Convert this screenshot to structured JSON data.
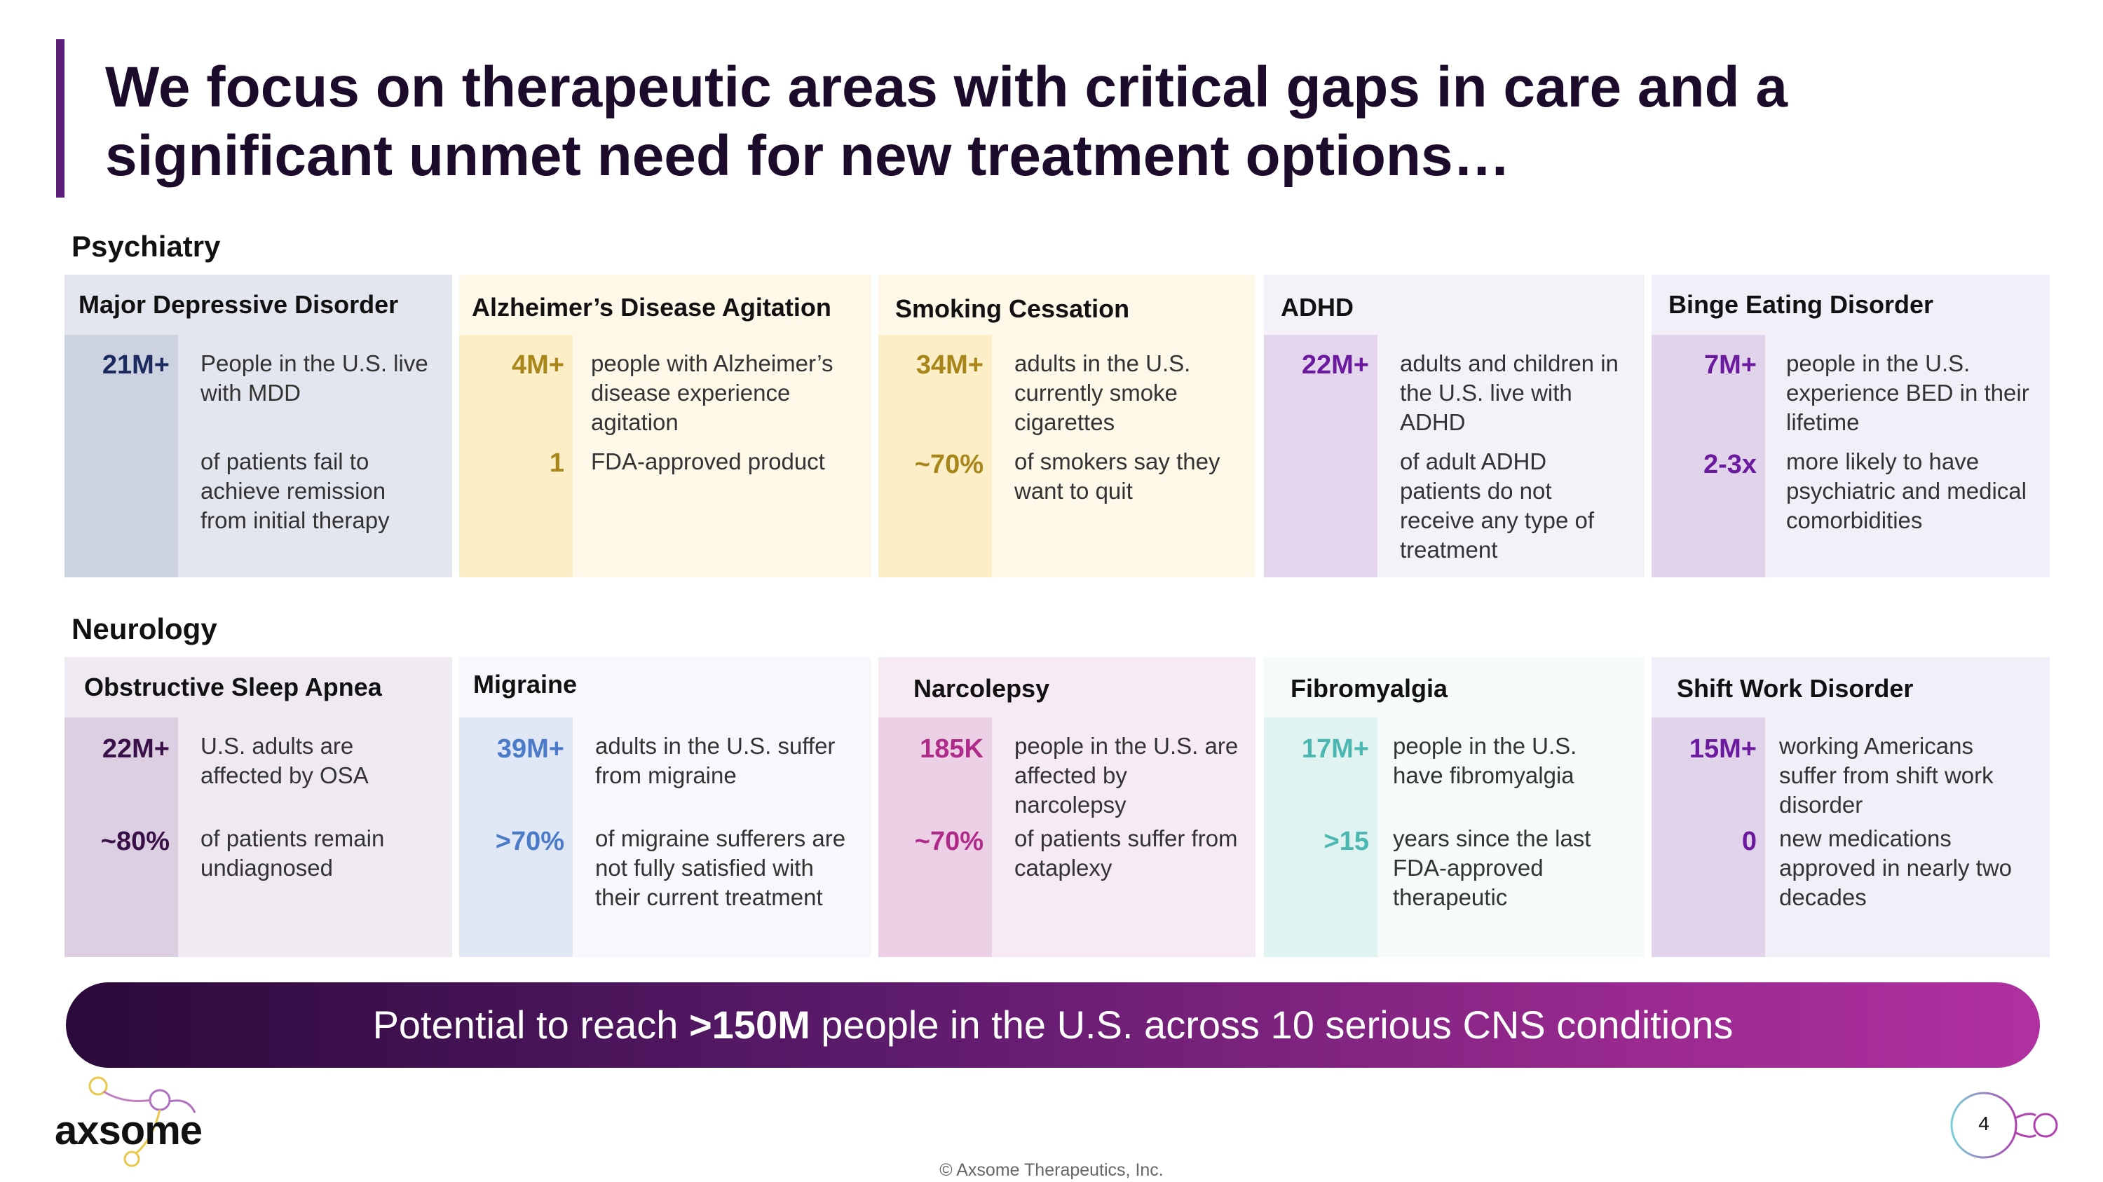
{
  "title": {
    "line1": "We focus on therapeutic areas with critical gaps in care and a",
    "line2": "significant unmet need for new treatment options…"
  },
  "sections": {
    "psychiatry": "Psychiatry",
    "neurology": "Neurology"
  },
  "cards": {
    "mdd": {
      "title": "Major Depressive Disorder",
      "s1_num": "21M+",
      "s1_text": "People in the U.S. live with MDD",
      "s2_num": "",
      "s2_text": "of patients fail to achieve remission from initial therapy"
    },
    "ada": {
      "title": "Alzheimer’s Disease Agitation",
      "s1_num": "4M+",
      "s1_text": "people with Alzheimer’s disease experience agitation",
      "s2_num": "1",
      "s2_text": "FDA-approved product"
    },
    "smoking": {
      "title": "Smoking Cessation",
      "s1_num": "34M+",
      "s1_text": "adults in the U.S. currently smoke cigarettes",
      "s2_num": "~70%",
      "s2_text": "of smokers say they want to quit"
    },
    "adhd": {
      "title": "ADHD",
      "s1_num": "22M+",
      "s1_text": "adults and children in the U.S. live with ADHD",
      "s2_num": "",
      "s2_text": "of adult ADHD patients do not receive any type of treatment"
    },
    "bed": {
      "title": "Binge Eating Disorder",
      "s1_num": "7M+",
      "s1_text": "people in the U.S. experience BED in their lifetime",
      "s2_num": "2-3x",
      "s2_text": "more likely to have psychiatric and medical comorbidities"
    },
    "osa": {
      "title": "Obstructive Sleep Apnea",
      "s1_num": "22M+",
      "s1_text": "U.S. adults are affected by OSA",
      "s2_num": "~80%",
      "s2_text": "of patients remain undiagnosed"
    },
    "migraine": {
      "title": "Migraine",
      "s1_num": "39M+",
      "s1_text": "adults in the U.S. suffer from migraine",
      "s2_num": ">70%",
      "s2_text": "of migraine sufferers are not fully satisfied with their current treatment"
    },
    "narcolepsy": {
      "title": "Narcolepsy",
      "s1_num": "185K",
      "s1_text": "people in the U.S. are affected by narcolepsy",
      "s2_num": "~70%",
      "s2_text": "of patients suffer from cataplexy"
    },
    "fibro": {
      "title": "Fibromyalgia",
      "s1_num": "17M+",
      "s1_text": "people in the U.S. have fibromyalgia",
      "s2_num": ">15",
      "s2_text": "years since the last FDA-approved therapeutic"
    },
    "swd": {
      "title": "Shift Work Disorder",
      "s1_num": "15M+",
      "s1_text": "working Americans suffer from shift work disorder",
      "s2_num": "0",
      "s2_text": "new medications approved in nearly two decades"
    }
  },
  "banner": {
    "pre": "Potential to reach ",
    "bold": ">150M",
    "post": " people in the U.S. across 10 serious CNS conditions"
  },
  "logo": {
    "text": "axsome",
    "icon": "molecule-logo-icon"
  },
  "page_number": "4",
  "footer": "© Axsome Therapeutics, Inc.",
  "colors": {
    "accent": "#5b1f7a",
    "navy": "#1b2a5e",
    "gold": "#a8861a",
    "purple": "#6b1aa0",
    "magenta": "#b02a8a",
    "blue": "#4a7ac8",
    "teal": "#4ab8b0"
  }
}
